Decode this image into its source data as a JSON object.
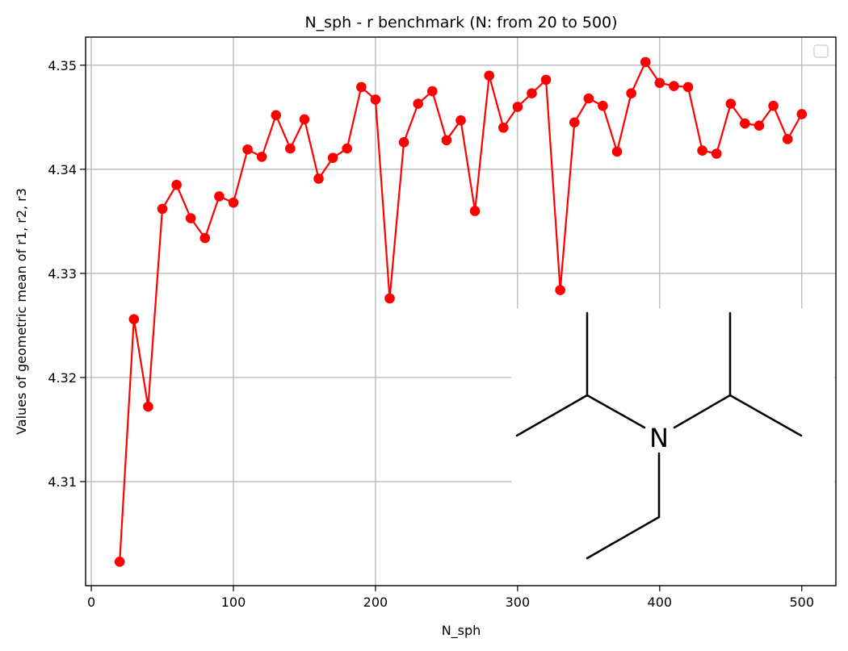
{
  "chart_data": {
    "type": "line",
    "title": "N_sph - r benchmark (N: from 20 to 500)",
    "xlabel": "N_sph",
    "ylabel": "Values of geometric mean of r1, r2, r3",
    "xlim": [
      -4,
      524
    ],
    "ylim": [
      4.3,
      4.3527
    ],
    "xticks": [
      0,
      100,
      200,
      300,
      400,
      500
    ],
    "xtick_labels": [
      "0",
      "100",
      "200",
      "300",
      "400",
      "500"
    ],
    "yticks": [
      4.31,
      4.32,
      4.33,
      4.34,
      4.35
    ],
    "ytick_labels": [
      "4.31",
      "4.32",
      "4.33",
      "4.34",
      "4.35"
    ],
    "grid": true,
    "legend": "top-right (empty)",
    "series": [
      {
        "color": "#ff0000",
        "marker": "circle",
        "x": [
          20,
          30,
          40,
          50,
          60,
          70,
          80,
          90,
          100,
          110,
          120,
          130,
          140,
          150,
          160,
          170,
          180,
          190,
          200,
          210,
          220,
          230,
          240,
          250,
          260,
          270,
          280,
          290,
          300,
          310,
          320,
          330,
          340,
          350,
          360,
          370,
          380,
          390,
          400,
          410,
          420,
          430,
          440,
          450,
          460,
          470,
          480,
          490,
          500
        ],
        "values": [
          4.3023,
          4.3256,
          4.3172,
          4.3362,
          4.3385,
          4.3353,
          4.3334,
          4.3374,
          4.3368,
          4.3419,
          4.3412,
          4.3452,
          4.342,
          4.3448,
          4.3391,
          4.3411,
          4.342,
          4.3479,
          4.3467,
          4.3276,
          4.3426,
          4.3463,
          4.3475,
          4.3428,
          4.3447,
          4.336,
          4.349,
          4.344,
          4.346,
          4.3473,
          4.3486,
          4.3284,
          4.3445,
          4.3468,
          4.3461,
          4.3417,
          4.3473,
          4.3503,
          4.3483,
          4.348,
          4.3479,
          4.3418,
          4.3415,
          4.3463,
          4.3444,
          4.3442,
          4.3461,
          4.3429,
          4.3453
        ]
      }
    ]
  },
  "inset": {
    "type": "skeletal-structure",
    "atom_label": "N"
  }
}
